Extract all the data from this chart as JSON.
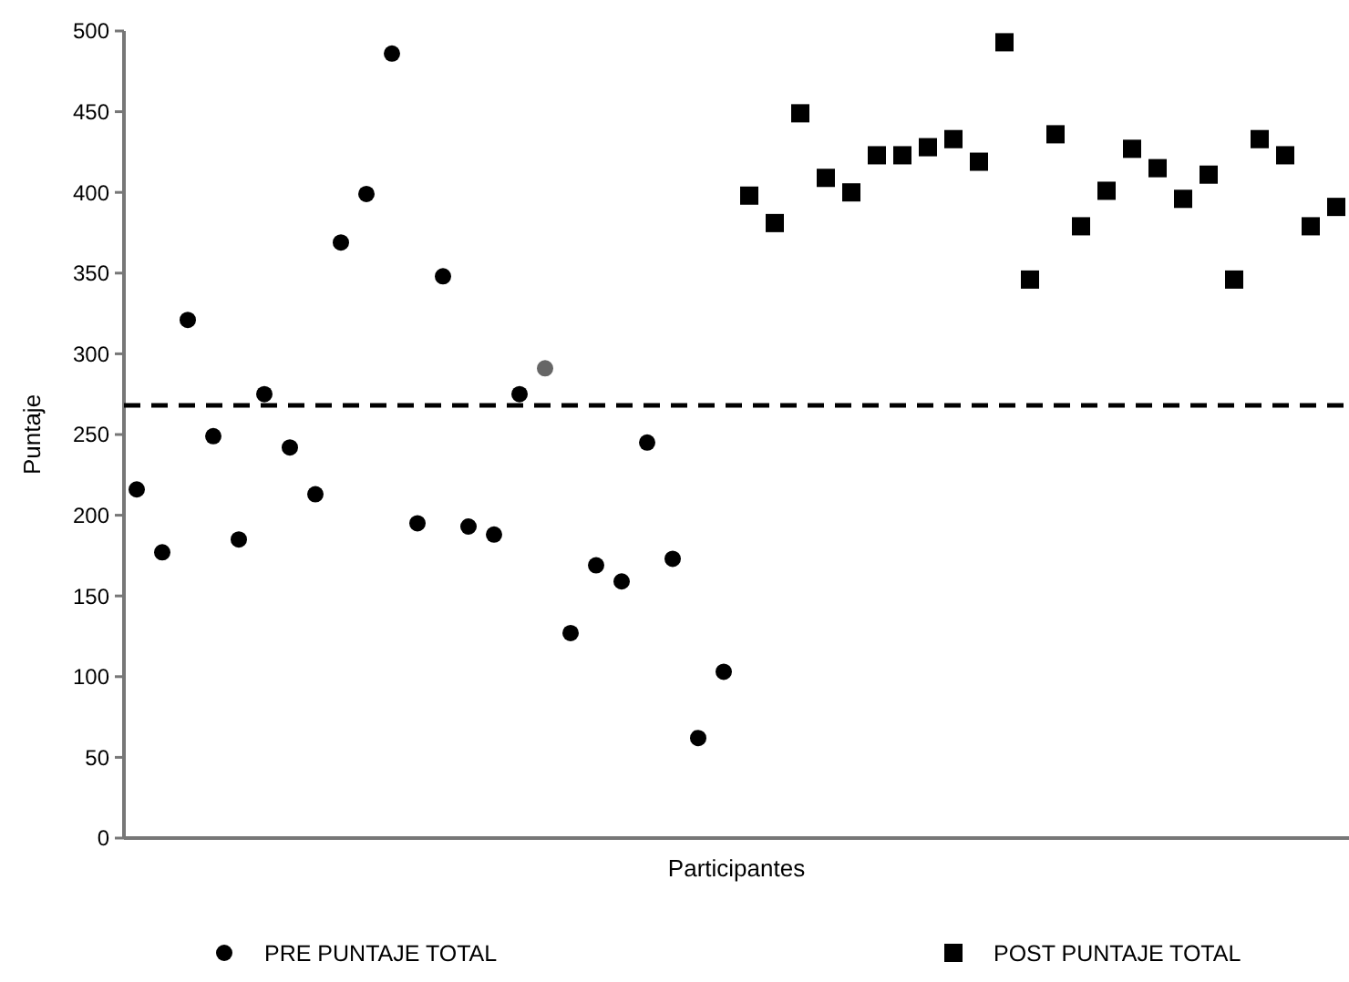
{
  "chart_data": {
    "type": "scatter",
    "xlabel": "Participantes",
    "ylabel": "Puntaje",
    "categories": [
      null,
      null,
      null,
      null,
      null,
      null,
      null,
      null,
      null,
      null,
      null,
      null,
      null,
      null,
      null,
      null,
      null,
      null,
      null,
      null,
      null,
      null,
      null,
      null,
      null,
      null,
      null,
      null,
      null,
      null,
      null,
      null,
      null,
      null,
      null,
      null,
      null,
      null,
      null,
      null,
      null,
      null,
      null,
      null,
      null,
      null,
      null,
      null
    ],
    "series": [
      {
        "name": "PRE PUNTAJE TOTAL",
        "color": "#000000",
        "marker": "circle",
        "colors": [
          "#000000",
          "#000000",
          "#000000",
          "#000000",
          "#000000",
          "#000000",
          "#000000",
          "#000000",
          "#000000",
          "#000000",
          "#000000",
          "#000000",
          "#000000",
          "#000000",
          "#000000",
          "#000000",
          "#666666",
          "#000000",
          "#000000",
          "#000000",
          "#000000",
          "#000000",
          "#000000",
          "#000000",
          null,
          null,
          null,
          null,
          null,
          null,
          null,
          null,
          null,
          null,
          null,
          null,
          null,
          null,
          null,
          null,
          null,
          null,
          null,
          null,
          null,
          null,
          null,
          null
        ],
        "values": [
          216,
          177,
          321,
          249,
          185,
          275,
          242,
          213,
          369,
          399,
          486,
          195,
          348,
          193,
          188,
          275,
          291,
          127,
          169,
          159,
          245,
          173,
          62,
          103,
          null,
          null,
          null,
          null,
          null,
          null,
          null,
          null,
          null,
          null,
          null,
          null,
          null,
          null,
          null,
          null,
          null,
          null,
          null,
          null,
          null,
          null,
          null,
          null
        ]
      },
      {
        "name": "POST PUNTAJE TOTAL",
        "color": "#000000",
        "marker": "square",
        "values": [
          null,
          null,
          null,
          null,
          null,
          null,
          null,
          null,
          null,
          null,
          null,
          null,
          null,
          null,
          null,
          null,
          null,
          null,
          null,
          null,
          null,
          null,
          null,
          null,
          398,
          381,
          449,
          409,
          400,
          423,
          423,
          428,
          433,
          419,
          493,
          346,
          436,
          379,
          401,
          427,
          415,
          396,
          411,
          346,
          433,
          423,
          379,
          391
        ]
      }
    ],
    "ylim": [
      0,
      500
    ],
    "yticks": [
      0,
      50,
      100,
      150,
      200,
      250,
      300,
      350,
      400,
      450,
      500
    ],
    "tick_labels": "y",
    "grid": false,
    "legend": "bottom",
    "ref_lines": [
      {
        "axis": "y",
        "value": 268,
        "color": "#000000",
        "line_style": "dashed"
      }
    ]
  }
}
